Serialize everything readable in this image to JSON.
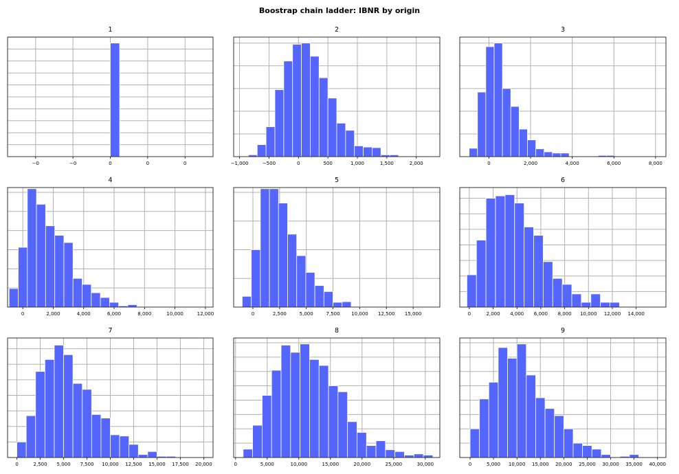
{
  "title": "Boostrap chain ladder: IBNR by origin",
  "colors": {
    "bar": "#5566ff",
    "bar_edge": "#ffffff",
    "grid": "#b0b0b0",
    "frame": "#000000"
  },
  "chart_data": [
    {
      "type": "bar",
      "title": "1",
      "grid": true,
      "xlim": [
        -0.055,
        0.055
      ],
      "ylim": [
        0,
        1
      ],
      "xticks": [
        -0.04,
        -0.02,
        0,
        0.02,
        0.04
      ],
      "xtick_labels": [
        "−0",
        "−0",
        "0",
        "0",
        "0"
      ],
      "ygrid": [
        0.1,
        0.2,
        0.3,
        0.4,
        0.5,
        0.6,
        0.7,
        0.8,
        0.9,
        1.0
      ],
      "bins": [
        [
          0,
          0.005,
          0.95
        ]
      ]
    },
    {
      "type": "bar",
      "title": "2",
      "grid": true,
      "xlim": [
        -1100,
        2400
      ],
      "ylim": [
        0,
        1
      ],
      "xticks": [
        -1000,
        -500,
        0,
        500,
        1000,
        1500,
        2000
      ],
      "xtick_labels": [
        "−1,000",
        "−500",
        "0",
        "500",
        "1,000",
        "1,500",
        "2,000"
      ],
      "ygrid": [
        0.19,
        0.38,
        0.57,
        0.76,
        0.95
      ],
      "bins": [
        [
          -850,
          -700,
          0.015
        ],
        [
          -700,
          -550,
          0.1
        ],
        [
          -550,
          -400,
          0.25
        ],
        [
          -400,
          -250,
          0.56
        ],
        [
          -250,
          -100,
          0.8
        ],
        [
          -100,
          50,
          0.94
        ],
        [
          50,
          200,
          0.95
        ],
        [
          200,
          350,
          0.84
        ],
        [
          350,
          500,
          0.66
        ],
        [
          500,
          650,
          0.49
        ],
        [
          650,
          800,
          0.28
        ],
        [
          800,
          950,
          0.22
        ],
        [
          950,
          1100,
          0.09
        ],
        [
          1100,
          1250,
          0.08
        ],
        [
          1250,
          1400,
          0.075
        ],
        [
          1400,
          1550,
          0.015
        ],
        [
          1550,
          1700,
          0.015
        ],
        [
          1700,
          1850,
          0.005
        ],
        [
          2050,
          2200,
          0.005
        ]
      ]
    },
    {
      "type": "bar",
      "title": "3",
      "grid": true,
      "xlim": [
        -1400,
        8500
      ],
      "ylim": [
        0,
        1
      ],
      "xticks": [
        0,
        2000,
        4000,
        6000,
        8000
      ],
      "xtick_labels": [
        "0",
        "2,000",
        "4,000",
        "6,000",
        "8,000"
      ],
      "ygrid": [
        0.19,
        0.38,
        0.57,
        0.76,
        0.95
      ],
      "bins": [
        [
          -950,
          -550,
          0.07
        ],
        [
          -550,
          -150,
          0.54
        ],
        [
          -150,
          250,
          0.92
        ],
        [
          250,
          650,
          0.95
        ],
        [
          650,
          1050,
          0.57
        ],
        [
          1050,
          1450,
          0.42
        ],
        [
          1450,
          1850,
          0.23
        ],
        [
          1850,
          2250,
          0.14
        ],
        [
          2250,
          2650,
          0.065
        ],
        [
          2650,
          3050,
          0.04
        ],
        [
          3050,
          3450,
          0.03
        ],
        [
          3450,
          3850,
          0.03
        ],
        [
          5250,
          5650,
          0.01
        ],
        [
          5650,
          6050,
          0.01
        ]
      ]
    },
    {
      "type": "bar",
      "title": "4",
      "grid": true,
      "xlim": [
        -1000,
        12500
      ],
      "ylim": [
        0,
        1
      ],
      "xticks": [
        0,
        2000,
        4000,
        6000,
        8000,
        10000,
        12000
      ],
      "xtick_labels": [
        "0",
        "2,000",
        "4,000",
        "6,000",
        "8,000",
        "10,000",
        "12,000"
      ],
      "ygrid": [
        0.16,
        0.32,
        0.48,
        0.64,
        0.8,
        0.96
      ],
      "bins": [
        [
          -900,
          -300,
          0.155
        ],
        [
          -300,
          300,
          0.5
        ],
        [
          300,
          900,
          0.99
        ],
        [
          900,
          1500,
          0.86
        ],
        [
          1500,
          2100,
          0.68
        ],
        [
          2100,
          2700,
          0.6
        ],
        [
          2700,
          3300,
          0.54
        ],
        [
          3300,
          3900,
          0.24
        ],
        [
          3900,
          4500,
          0.19
        ],
        [
          4500,
          5100,
          0.12
        ],
        [
          5100,
          5700,
          0.08
        ],
        [
          5700,
          6300,
          0.04
        ],
        [
          6300,
          6900,
          0.01
        ],
        [
          6900,
          7500,
          0.02
        ],
        [
          7500,
          8100,
          0.005
        ],
        [
          8100,
          8700,
          0.005
        ],
        [
          9300,
          9900,
          0.005
        ],
        [
          10500,
          11100,
          0.005
        ]
      ]
    },
    {
      "type": "bar",
      "title": "5",
      "grid": true,
      "xlim": [
        -1800,
        17500
      ],
      "ylim": [
        0,
        1
      ],
      "xticks": [
        0,
        2500,
        5000,
        7500,
        10000,
        12500,
        15000
      ],
      "xtick_labels": [
        "0",
        "2,500",
        "5,000",
        "7,500",
        "10,000",
        "12,500",
        "15,000"
      ],
      "ygrid": [
        0.24,
        0.48,
        0.72,
        0.96
      ],
      "bins": [
        [
          -1000,
          -150,
          0.09
        ],
        [
          -150,
          700,
          0.48
        ],
        [
          700,
          1550,
          0.99
        ],
        [
          1550,
          2400,
          0.99
        ],
        [
          2400,
          3250,
          0.87
        ],
        [
          3250,
          4100,
          0.61
        ],
        [
          4100,
          4950,
          0.43
        ],
        [
          4950,
          5800,
          0.29
        ],
        [
          5800,
          6650,
          0.18
        ],
        [
          6650,
          7500,
          0.13
        ],
        [
          7500,
          8350,
          0.04
        ],
        [
          8350,
          9200,
          0.045
        ],
        [
          9200,
          10050,
          0.005
        ]
      ]
    },
    {
      "type": "bar",
      "title": "6",
      "grid": true,
      "xlim": [
        -800,
        16500
      ],
      "ylim": [
        0,
        1
      ],
      "xticks": [
        0,
        2000,
        4000,
        6000,
        8000,
        10000,
        12000,
        14000
      ],
      "xtick_labels": [
        "0",
        "2,000",
        "4,000",
        "6,000",
        "8,000",
        "10,000",
        "12,000",
        "14,000"
      ],
      "ygrid": [
        0.13,
        0.26,
        0.39,
        0.52,
        0.65,
        0.78,
        0.91
      ],
      "bins": [
        [
          -200,
          600,
          0.27
        ],
        [
          600,
          1400,
          0.56
        ],
        [
          1400,
          2200,
          0.91
        ],
        [
          2200,
          3000,
          0.93
        ],
        [
          3000,
          3800,
          0.94
        ],
        [
          3800,
          4600,
          0.87
        ],
        [
          4600,
          5400,
          0.67
        ],
        [
          5400,
          6200,
          0.6
        ],
        [
          6200,
          7000,
          0.38
        ],
        [
          7000,
          7800,
          0.24
        ],
        [
          7800,
          8600,
          0.19
        ],
        [
          8600,
          9400,
          0.11
        ],
        [
          9400,
          10200,
          0.04
        ],
        [
          10200,
          11000,
          0.11
        ],
        [
          11000,
          11800,
          0.04
        ],
        [
          11800,
          12600,
          0.04
        ],
        [
          13400,
          14200,
          0.005
        ]
      ]
    },
    {
      "type": "bar",
      "title": "7",
      "grid": true,
      "xlim": [
        -1000,
        21000
      ],
      "ylim": [
        0,
        1
      ],
      "xticks": [
        0,
        2500,
        5000,
        7500,
        10000,
        12500,
        15000,
        17500,
        20000
      ],
      "xtick_labels": [
        "0",
        "2,500",
        "5,000",
        "7,500",
        "10,000",
        "12,500",
        "15,000",
        "17,500",
        "20,000"
      ],
      "ygrid": [
        0.13,
        0.26,
        0.39,
        0.52,
        0.65,
        0.78,
        0.91
      ],
      "bins": [
        [
          0,
          1000,
          0.13
        ],
        [
          1000,
          2000,
          0.35
        ],
        [
          2000,
          3000,
          0.72
        ],
        [
          3000,
          4000,
          0.82
        ],
        [
          4000,
          5000,
          0.94
        ],
        [
          5000,
          6000,
          0.86
        ],
        [
          6000,
          7000,
          0.62
        ],
        [
          7000,
          8000,
          0.57
        ],
        [
          8000,
          9000,
          0.36
        ],
        [
          9000,
          10000,
          0.33
        ],
        [
          10000,
          11000,
          0.19
        ],
        [
          11000,
          12000,
          0.18
        ],
        [
          12000,
          13000,
          0.11
        ],
        [
          13000,
          14000,
          0.025
        ],
        [
          14000,
          15000,
          0.05
        ],
        [
          15000,
          16000,
          0.01
        ],
        [
          16000,
          17000,
          0.01
        ]
      ]
    },
    {
      "type": "bar",
      "title": "8",
      "grid": true,
      "xlim": [
        -300,
        32300
      ],
      "ylim": [
        0,
        1
      ],
      "xticks": [
        0,
        5000,
        10000,
        15000,
        20000,
        25000,
        30000
      ],
      "xtick_labels": [
        "0",
        "5,000",
        "10,000",
        "15,000",
        "20,000",
        "25,000",
        "30,000"
      ],
      "ygrid": [
        0.12,
        0.24,
        0.36,
        0.48,
        0.6,
        0.72,
        0.84,
        0.96
      ],
      "bins": [
        [
          1200,
          2700,
          0.07
        ],
        [
          2700,
          4200,
          0.27
        ],
        [
          4200,
          5700,
          0.52
        ],
        [
          5700,
          7200,
          0.73
        ],
        [
          7200,
          8700,
          0.94
        ],
        [
          8700,
          10200,
          0.88
        ],
        [
          10200,
          11700,
          0.95
        ],
        [
          11700,
          13200,
          0.82
        ],
        [
          13200,
          14700,
          0.77
        ],
        [
          14700,
          16200,
          0.6
        ],
        [
          16200,
          17700,
          0.55
        ],
        [
          17700,
          19200,
          0.3
        ],
        [
          19200,
          20700,
          0.21
        ],
        [
          20700,
          22200,
          0.1
        ],
        [
          22200,
          23700,
          0.14
        ],
        [
          23700,
          25200,
          0.065
        ],
        [
          25200,
          26700,
          0.05
        ],
        [
          26700,
          28200,
          0.02
        ],
        [
          28200,
          29700,
          0.03
        ],
        [
          29700,
          31200,
          0.02
        ]
      ]
    },
    {
      "type": "bar",
      "title": "9",
      "grid": true,
      "xlim": [
        -2200,
        41800
      ],
      "ylim": [
        0,
        1
      ],
      "xticks": [
        0,
        5000,
        10000,
        15000,
        20000,
        25000,
        30000,
        35000,
        40000
      ],
      "xtick_labels": [
        "0",
        "5,000",
        "10,000",
        "15,000",
        "20,000",
        "25,000",
        "30,000",
        "35,000",
        "40,000"
      ],
      "ygrid": [
        0.12,
        0.24,
        0.36,
        0.48,
        0.6,
        0.72,
        0.84,
        0.96
      ],
      "bins": [
        [
          0,
          2000,
          0.24
        ],
        [
          2000,
          4000,
          0.49
        ],
        [
          4000,
          6000,
          0.63
        ],
        [
          6000,
          8000,
          0.92
        ],
        [
          8000,
          10000,
          0.83
        ],
        [
          10000,
          12000,
          0.95
        ],
        [
          12000,
          14000,
          0.69
        ],
        [
          14000,
          16000,
          0.5
        ],
        [
          16000,
          18000,
          0.41
        ],
        [
          18000,
          20000,
          0.35
        ],
        [
          20000,
          22000,
          0.24
        ],
        [
          22000,
          24000,
          0.12
        ],
        [
          24000,
          26000,
          0.1
        ],
        [
          26000,
          28000,
          0.07
        ],
        [
          28000,
          30000,
          0.025
        ],
        [
          30000,
          32000,
          0.005
        ],
        [
          32000,
          34000,
          0.01
        ],
        [
          34000,
          36000,
          0.025
        ],
        [
          36000,
          38000,
          0.005
        ]
      ]
    }
  ]
}
